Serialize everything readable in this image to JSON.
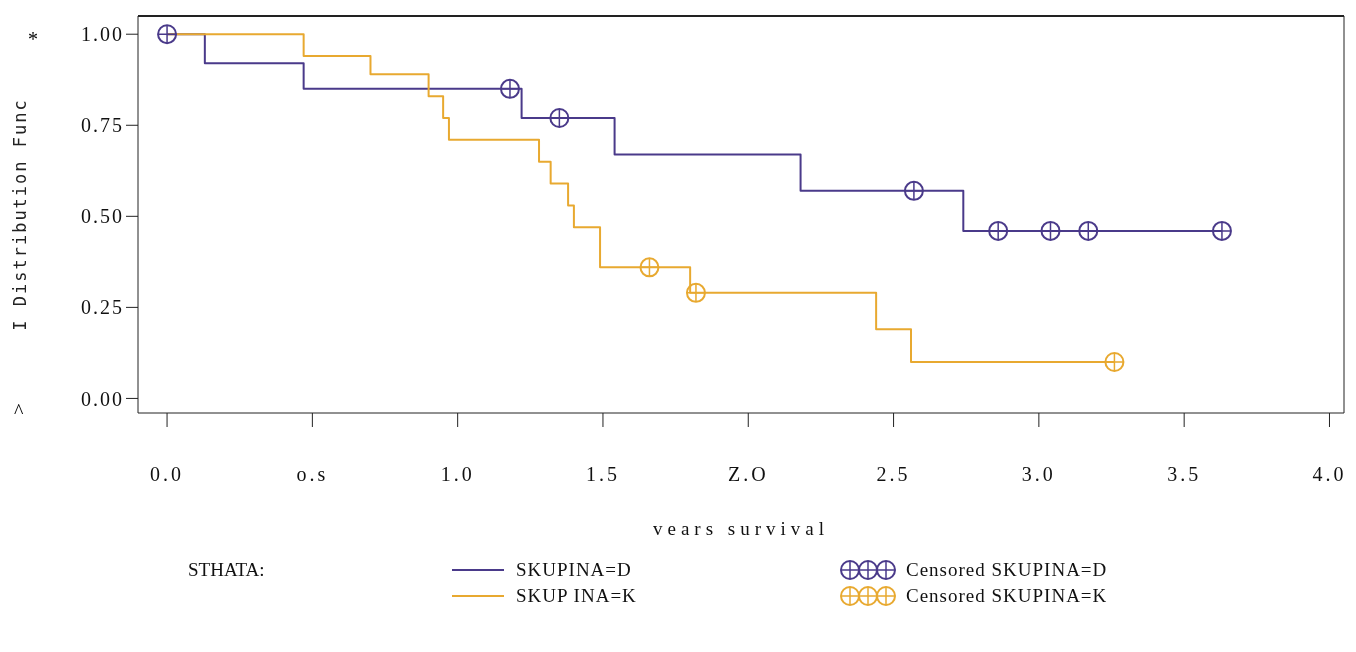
{
  "chart_data": {
    "type": "step",
    "xlabel": "vears survival",
    "ylabel": "I Distribution Func",
    "legend_title": "STHATA:",
    "xlim": [
      -0.1,
      4.05
    ],
    "ylim": [
      -0.04,
      1.05
    ],
    "xticks": [
      {
        "value": 0,
        "label": "0.0"
      },
      {
        "value": 0.5,
        "label": "o.s"
      },
      {
        "value": 1,
        "label": "1.0"
      },
      {
        "value": 1.5,
        "label": "1.5"
      },
      {
        "value": 2,
        "label": "Z.O"
      },
      {
        "value": 2.5,
        "label": "2.5"
      },
      {
        "value": 3,
        "label": "3.0"
      },
      {
        "value": 3.5,
        "label": "3.5"
      },
      {
        "value": 4,
        "label": "4.0"
      }
    ],
    "yticks": [
      {
        "value": 0,
        "label": "0.00"
      },
      {
        "value": 0.25,
        "label": "0.25"
      },
      {
        "value": 0.5,
        "label": "0.50"
      },
      {
        "value": 0.75,
        "label": "0.75"
      },
      {
        "value": 1,
        "label": "1.00"
      }
    ],
    "grid": false,
    "legend": "bottom",
    "line_style": "solid",
    "annotations": [
      "*",
      "^"
    ],
    "series": [
      {
        "name": "SKUPINA=D",
        "color": "#4a3a8a",
        "x": [
          0,
          0.13,
          0.47,
          1.22,
          1.54,
          2.18,
          2.74,
          3.63
        ],
        "values": [
          1,
          0.92,
          0.85,
          0.77,
          0.67,
          0.57,
          0.46,
          0.46
        ]
      },
      {
        "name": "SKUP INA=K",
        "color": "#e8a930",
        "x": [
          0,
          0.47,
          0.7,
          0.9,
          0.95,
          0.97,
          1.28,
          1.32,
          1.38,
          1.4,
          1.49,
          1.8,
          2.44,
          2.56,
          3.26
        ],
        "values": [
          1,
          0.94,
          0.89,
          0.83,
          0.77,
          0.71,
          0.65,
          0.59,
          0.53,
          0.47,
          0.36,
          0.29,
          0.19,
          0.1,
          0.1
        ]
      },
      {
        "name": "Censored SKUPINA=D",
        "type": "scatter",
        "marker": "circle",
        "color": "#4a3a8a",
        "x": [
          0,
          1.18,
          1.35,
          2.57,
          2.86,
          3.04,
          3.17,
          3.63
        ],
        "values": [
          1,
          0.85,
          0.77,
          0.57,
          0.46,
          0.46,
          0.46,
          0.46
        ]
      },
      {
        "name": "Censored SKUPINA=K",
        "type": "scatter",
        "marker": "circle",
        "color": "#e8a930",
        "x": [
          1.66,
          1.82,
          3.26
        ],
        "values": [
          0.36,
          0.29,
          0.1
        ]
      }
    ]
  }
}
